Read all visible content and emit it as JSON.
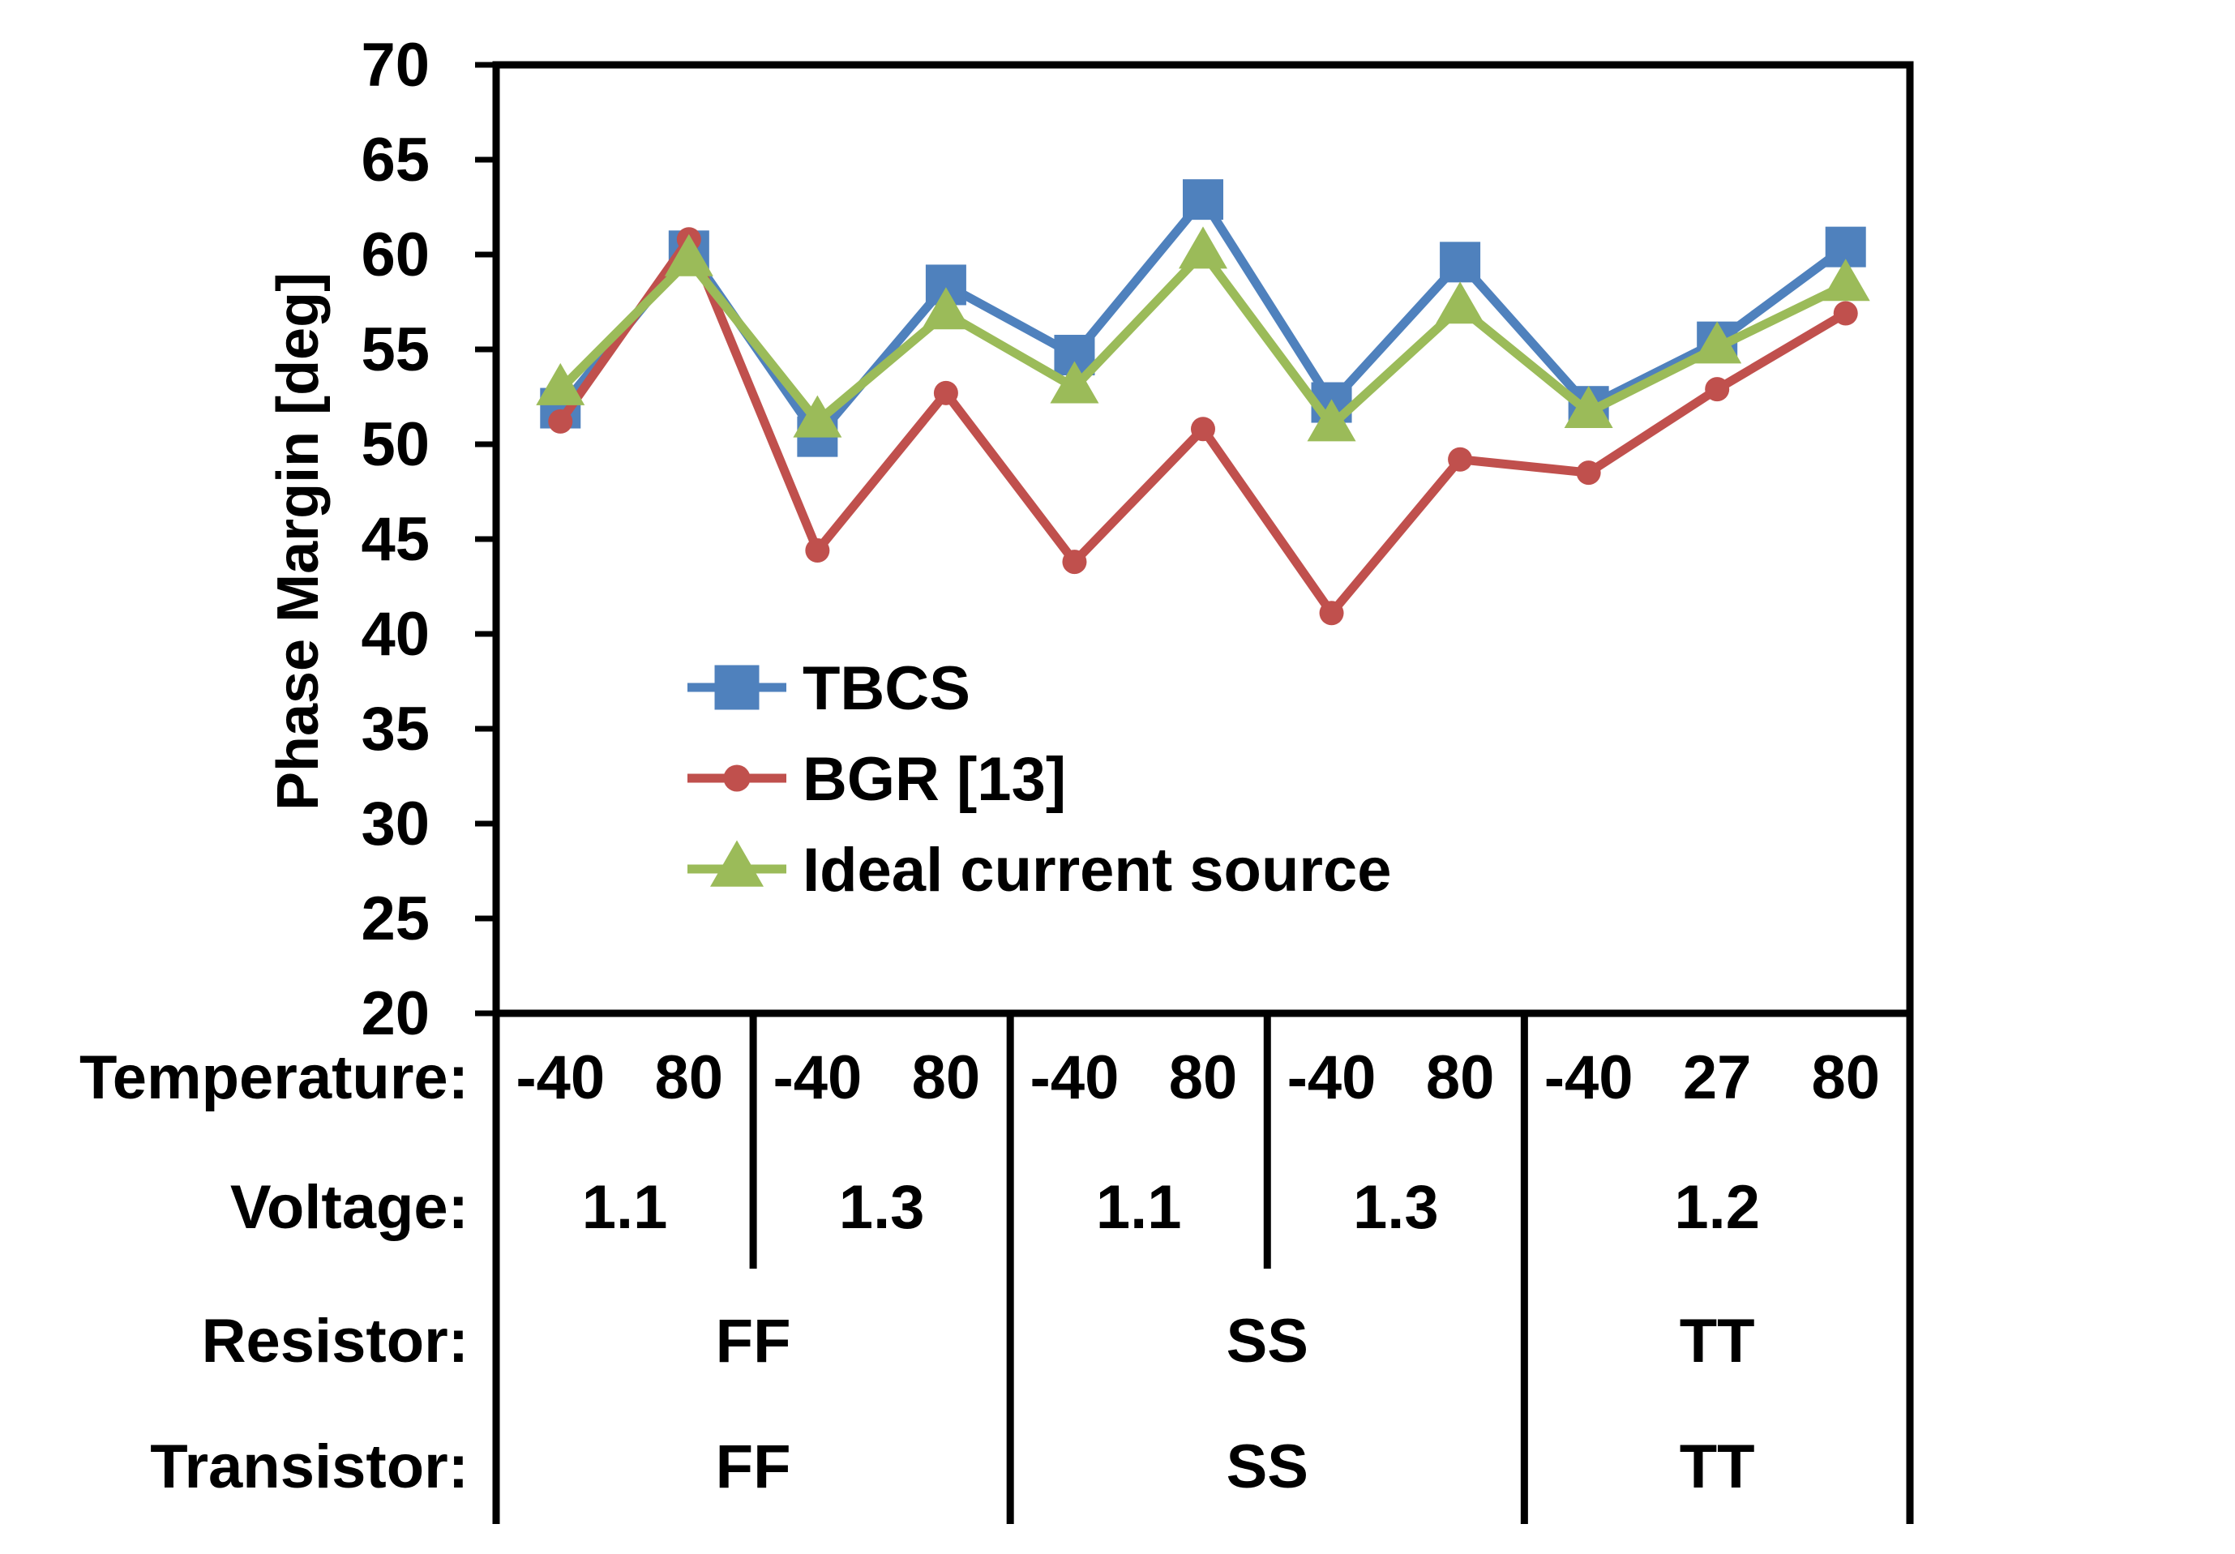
{
  "chart_data": {
    "type": "line",
    "title": "",
    "ylabel": "Phase Margin [deg]",
    "xlabel": "",
    "ylim": [
      20,
      70
    ],
    "y_ticks": [
      20,
      25,
      30,
      35,
      40,
      45,
      50,
      55,
      60,
      65,
      70
    ],
    "grid": false,
    "legend_position": "center-left",
    "x": [
      "-40",
      "80",
      "-40",
      "80",
      "-40",
      "80",
      "-40",
      "80",
      "-40",
      "27",
      "80"
    ],
    "series": [
      {
        "name": "TBCS",
        "marker": "square",
        "color": "#4F81BD",
        "values": [
          51.9,
          60.2,
          50.4,
          58.4,
          54.7,
          62.9,
          52.2,
          59.6,
          52.0,
          55.4,
          60.4
        ]
      },
      {
        "name": "BGR [13]",
        "marker": "circle",
        "color": "#C0504D",
        "values": [
          51.2,
          60.8,
          44.4,
          52.7,
          43.8,
          50.8,
          41.1,
          49.2,
          48.5,
          52.9,
          56.9
        ]
      },
      {
        "name": "Ideal current source",
        "marker": "triangle",
        "color": "#9BBB59",
        "values": [
          52.9,
          59.7,
          51.2,
          56.9,
          53.0,
          60.1,
          51.0,
          57.2,
          51.7,
          55.1,
          58.4
        ]
      }
    ],
    "table": {
      "rows": [
        {
          "label": "Temperature:",
          "cells": [
            {
              "text": "-40",
              "span": 1
            },
            {
              "text": "80",
              "span": 1
            },
            {
              "text": "-40",
              "span": 1
            },
            {
              "text": "80",
              "span": 1
            },
            {
              "text": "-40",
              "span": 1
            },
            {
              "text": "80",
              "span": 1
            },
            {
              "text": "-40",
              "span": 1
            },
            {
              "text": "80",
              "span": 1
            },
            {
              "text": "-40",
              "span": 1
            },
            {
              "text": "27",
              "span": 1
            },
            {
              "text": "80",
              "span": 1
            }
          ]
        },
        {
          "label": "Voltage:",
          "cells": [
            {
              "text": "1.1",
              "span": 2
            },
            {
              "text": "1.3",
              "span": 2
            },
            {
              "text": "1.1",
              "span": 2
            },
            {
              "text": "1.3",
              "span": 2
            },
            {
              "text": "1.2",
              "span": 3
            }
          ]
        },
        {
          "label": "Resistor:",
          "cells": [
            {
              "text": "FF",
              "span": 4
            },
            {
              "text": "SS",
              "span": 4
            },
            {
              "text": "TT",
              "span": 3
            }
          ]
        },
        {
          "label": "Transistor:",
          "cells": [
            {
              "text": "FF",
              "span": 4
            },
            {
              "text": "SS",
              "span": 4
            },
            {
              "text": "TT",
              "span": 3
            }
          ]
        }
      ]
    }
  }
}
